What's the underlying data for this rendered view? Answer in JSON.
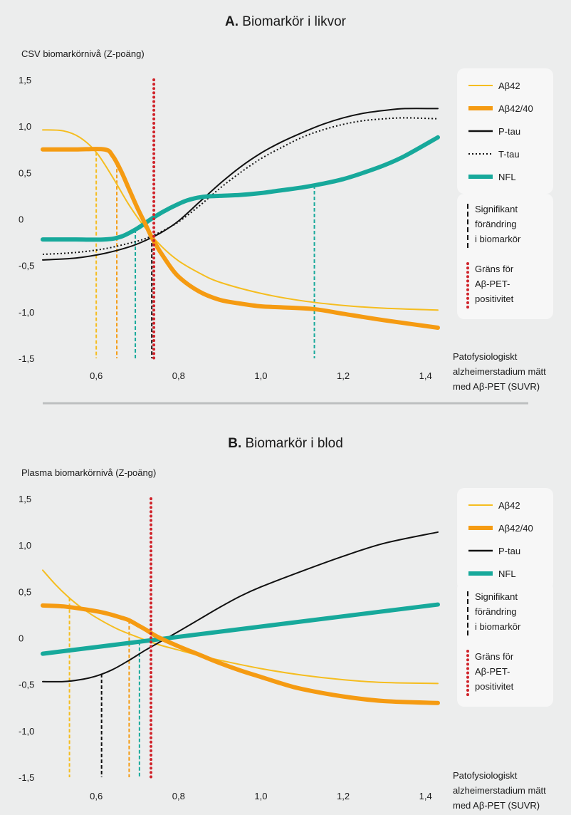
{
  "panels": [
    {
      "letter": "A.",
      "title": "Biomarkör i likvor",
      "ylabel": "CSV biomarkörnivå (Z-poäng)",
      "xnote": [
        "Patofysiologiskt",
        "alzheimerstadium mätt",
        "med Aβ-PET (SUVR)"
      ],
      "legend": [
        {
          "label": "Aβ42",
          "style": "thin",
          "color": "#f5bd1f"
        },
        {
          "label": "Aβ42/40",
          "style": "thick",
          "color": "#f59b12"
        },
        {
          "label": "P-tau",
          "style": "solid",
          "color": "#111111"
        },
        {
          "label": "T-tau",
          "style": "dotted",
          "color": "#111111"
        },
        {
          "label": "NFL",
          "style": "thick",
          "color": "#17a99b"
        }
      ],
      "note_sig": [
        "Signifikant",
        "förändring",
        "i biomarkör"
      ],
      "note_pos": [
        "Gräns för",
        "Aβ-PET-",
        "positivitet"
      ]
    },
    {
      "letter": "B.",
      "title": "Biomarkör i blod",
      "ylabel": "Plasma biomarkörnivå (Z-poäng)",
      "xnote": [
        "Patofysiologiskt",
        "alzheimerstadium mätt",
        "med Aβ-PET (SUVR)"
      ],
      "legend": [
        {
          "label": "Aβ42",
          "style": "thin",
          "color": "#f5bd1f"
        },
        {
          "label": "Aβ42/40",
          "style": "thick",
          "color": "#f59b12"
        },
        {
          "label": "P-tau",
          "style": "solid",
          "color": "#111111"
        },
        {
          "label": "NFL",
          "style": "thick",
          "color": "#17a99b"
        }
      ],
      "note_sig": [
        "Signifikant",
        "förändring",
        "i biomarkör"
      ],
      "note_pos": [
        "Gräns för",
        "Aβ-PET-",
        "positivitet"
      ]
    }
  ],
  "chart_data": [
    {
      "type": "line",
      "title": "Biomarkör i likvor",
      "ylabel": "CSV biomarkörnivå (Z-poäng)",
      "xlabel": "Patofysiologiskt alzheimerstadium mätt med Aβ-PET (SUVR)",
      "xlim": [
        0.47,
        1.43
      ],
      "ylim": [
        -1.5,
        1.5
      ],
      "xticks": [
        0.6,
        0.8,
        1.0,
        1.2,
        1.4
      ],
      "xtick_labels": [
        "0,6",
        "0,8",
        "1,0",
        "1,2",
        "1,4"
      ],
      "yticks": [
        1.5,
        1.0,
        0.5,
        0,
        -0.5,
        -1.0,
        -1.5
      ],
      "ytick_labels": [
        "1,5",
        "1,0",
        "0,5",
        "0",
        "-0,5",
        "-1,0",
        "-1,5"
      ],
      "grid": false,
      "legend_position": "right",
      "series": [
        {
          "name": "Aβ42",
          "color": "#f5bd1f",
          "width": 2,
          "dash": "",
          "x": [
            0.47,
            0.52,
            0.56,
            0.6,
            0.64,
            0.68,
            0.72,
            0.76,
            0.8,
            0.85,
            0.9,
            1.0,
            1.1,
            1.2,
            1.3,
            1.43
          ],
          "y": [
            0.96,
            0.95,
            0.88,
            0.72,
            0.45,
            0.15,
            -0.1,
            -0.3,
            -0.45,
            -0.58,
            -0.68,
            -0.8,
            -0.88,
            -0.93,
            -0.96,
            -0.98
          ]
        },
        {
          "name": "Aβ42/40",
          "color": "#f59b12",
          "width": 6,
          "dash": "",
          "x": [
            0.47,
            0.55,
            0.62,
            0.64,
            0.66,
            0.68,
            0.7,
            0.72,
            0.74,
            0.77,
            0.8,
            0.85,
            0.9,
            0.95,
            1.0,
            1.05,
            1.13,
            1.2,
            1.3,
            1.43
          ],
          "y": [
            0.75,
            0.75,
            0.75,
            0.68,
            0.52,
            0.32,
            0.12,
            -0.06,
            -0.24,
            -0.45,
            -0.62,
            -0.78,
            -0.87,
            -0.91,
            -0.94,
            -0.95,
            -0.97,
            -1.02,
            -1.09,
            -1.17
          ]
        },
        {
          "name": "P-tau",
          "color": "#111111",
          "width": 2,
          "dash": "",
          "x": [
            0.47,
            0.55,
            0.62,
            0.68,
            0.72,
            0.76,
            0.8,
            0.85,
            0.9,
            0.95,
            1.0,
            1.05,
            1.1,
            1.15,
            1.2,
            1.25,
            1.3,
            1.35,
            1.43
          ],
          "y": [
            -0.44,
            -0.42,
            -0.37,
            -0.3,
            -0.23,
            -0.14,
            -0.02,
            0.18,
            0.38,
            0.56,
            0.71,
            0.83,
            0.93,
            1.02,
            1.09,
            1.14,
            1.17,
            1.19,
            1.19
          ]
        },
        {
          "name": "T-tau",
          "color": "#111111",
          "width": 2,
          "dash": "2 3",
          "x": [
            0.47,
            0.55,
            0.62,
            0.68,
            0.72,
            0.76,
            0.8,
            0.85,
            0.9,
            0.95,
            1.0,
            1.05,
            1.1,
            1.15,
            1.2,
            1.25,
            1.3,
            1.35,
            1.43
          ],
          "y": [
            -0.38,
            -0.36,
            -0.32,
            -0.26,
            -0.21,
            -0.13,
            -0.03,
            0.14,
            0.33,
            0.5,
            0.65,
            0.77,
            0.88,
            0.96,
            1.02,
            1.06,
            1.08,
            1.09,
            1.08
          ]
        },
        {
          "name": "NFL",
          "color": "#17a99b",
          "width": 6,
          "dash": "",
          "x": [
            0.47,
            0.55,
            0.62,
            0.66,
            0.7,
            0.74,
            0.78,
            0.82,
            0.86,
            0.9,
            0.95,
            1.0,
            1.05,
            1.1,
            1.15,
            1.2,
            1.25,
            1.3,
            1.35,
            1.43
          ],
          "y": [
            -0.22,
            -0.22,
            -0.22,
            -0.19,
            -0.1,
            0.02,
            0.12,
            0.2,
            0.24,
            0.25,
            0.26,
            0.28,
            0.31,
            0.34,
            0.38,
            0.43,
            0.5,
            0.58,
            0.68,
            0.88
          ]
        }
      ],
      "threshold": {
        "x": 0.74,
        "color": "#d0242b"
      },
      "significant_change": [
        {
          "series": "Aβ42",
          "x": 0.6,
          "color": "#f5bd1f"
        },
        {
          "series": "Aβ42/40",
          "x": 0.65,
          "color": "#f59b12"
        },
        {
          "series": "NFL",
          "x": 0.695,
          "color": "#17a99b"
        },
        {
          "series": "P-tau",
          "x": 0.735,
          "color": "#111111"
        },
        {
          "series": "NFL",
          "x": 1.13,
          "color": "#17a99b"
        }
      ]
    },
    {
      "type": "line",
      "title": "Biomarkör i blod",
      "ylabel": "Plasma biomarkörnivå (Z-poäng)",
      "xlabel": "Patofysiologiskt alzheimerstadium mätt med Aβ-PET (SUVR)",
      "xlim": [
        0.47,
        1.43
      ],
      "ylim": [
        -1.5,
        1.5
      ],
      "xticks": [
        0.6,
        0.8,
        1.0,
        1.2,
        1.4
      ],
      "xtick_labels": [
        "0,6",
        "0,8",
        "1,0",
        "1,2",
        "1,4"
      ],
      "yticks": [
        1.5,
        1.0,
        0.5,
        0,
        -0.5,
        -1.0,
        -1.5
      ],
      "ytick_labels": [
        "1,5",
        "1,0",
        "0,5",
        "0",
        "-0,5",
        "-1,0",
        "-1,5"
      ],
      "grid": false,
      "legend_position": "right",
      "series": [
        {
          "name": "Aβ42",
          "color": "#f5bd1f",
          "width": 2,
          "dash": "",
          "x": [
            0.47,
            0.5,
            0.53,
            0.56,
            0.6,
            0.65,
            0.7,
            0.75,
            0.8,
            0.85,
            0.9,
            1.0,
            1.1,
            1.2,
            1.3,
            1.43
          ],
          "y": [
            0.73,
            0.58,
            0.45,
            0.34,
            0.22,
            0.1,
            0.01,
            -0.07,
            -0.13,
            -0.19,
            -0.24,
            -0.33,
            -0.4,
            -0.45,
            -0.48,
            -0.49
          ]
        },
        {
          "name": "Aβ42/40",
          "color": "#f59b12",
          "width": 6,
          "dash": "",
          "x": [
            0.47,
            0.52,
            0.57,
            0.62,
            0.66,
            0.68,
            0.7,
            0.72,
            0.75,
            0.8,
            0.85,
            0.9,
            0.95,
            1.0,
            1.05,
            1.1,
            1.2,
            1.3,
            1.43
          ],
          "y": [
            0.35,
            0.34,
            0.31,
            0.27,
            0.22,
            0.19,
            0.14,
            0.09,
            0.01,
            -0.09,
            -0.18,
            -0.27,
            -0.35,
            -0.42,
            -0.49,
            -0.55,
            -0.63,
            -0.68,
            -0.7
          ]
        },
        {
          "name": "P-tau",
          "color": "#111111",
          "width": 2,
          "dash": "",
          "x": [
            0.47,
            0.52,
            0.56,
            0.6,
            0.64,
            0.68,
            0.72,
            0.76,
            0.8,
            0.85,
            0.9,
            0.95,
            1.0,
            1.1,
            1.2,
            1.3,
            1.43
          ],
          "y": [
            -0.47,
            -0.47,
            -0.45,
            -0.41,
            -0.34,
            -0.24,
            -0.13,
            -0.03,
            0.07,
            0.2,
            0.33,
            0.45,
            0.55,
            0.72,
            0.88,
            1.02,
            1.14
          ]
        },
        {
          "name": "NFL",
          "color": "#17a99b",
          "width": 6,
          "dash": "",
          "x": [
            0.47,
            1.43
          ],
          "y": [
            -0.17,
            0.36
          ]
        }
      ],
      "threshold": {
        "x": 0.733,
        "color": "#d0242b"
      },
      "significant_change": [
        {
          "series": "Aβ42",
          "x": 0.535,
          "color": "#f5bd1f"
        },
        {
          "series": "P-tau",
          "x": 0.613,
          "color": "#111111"
        },
        {
          "series": "Aβ42/40",
          "x": 0.68,
          "color": "#f59b12"
        },
        {
          "series": "NFL",
          "x": 0.705,
          "color": "#17a99b"
        }
      ]
    }
  ]
}
